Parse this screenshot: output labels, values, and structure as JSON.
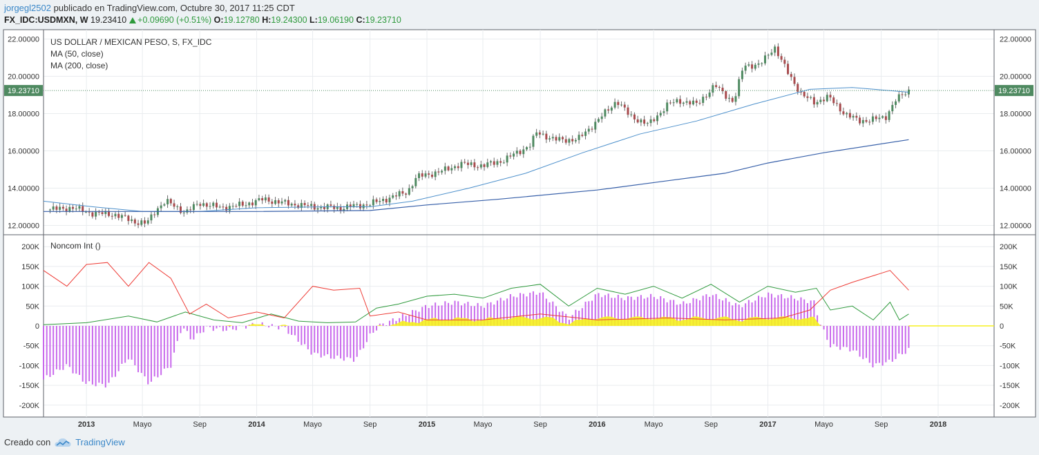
{
  "header": {
    "user": "jorgegl2502",
    "published": " publicado en TradingView.com, Octubre 30, 2017 11:25 CDT",
    "symbol": "FX_IDC:USDMXN, W",
    "last": "19.23410",
    "change": "+0.09690 (+0.51%)",
    "o_label": "O:",
    "o": "19.12780",
    "h_label": "H:",
    "h": "19.24300",
    "l_label": "L:",
    "l": "19.06190",
    "c_label": "C:",
    "c": "19.23710"
  },
  "legend": {
    "title": "US DOLLAR / MEXICAN PESO, S, FX_IDC",
    "ma50": "MA (50, close)",
    "ma200": "MA (200, close)",
    "indicator": "Noncom Int ()"
  },
  "footer": {
    "created": "Creado con",
    "brand": "TradingView"
  },
  "colors": {
    "up": "#4f8a61",
    "down": "#a84a4d",
    "ma50": "#4b8fcb",
    "ma200": "#355ea8",
    "longs": "#2e9a3c",
    "shorts": "#ee3b35",
    "net_bar": "#c868ec",
    "net_area": "#f5f11e",
    "price_tag": "#4f8a61"
  },
  "chart_data": [
    {
      "type": "candlestick",
      "title": "US DOLLAR / MEXICAN PESO, S, FX_IDC",
      "timeframe": "W",
      "ylim": [
        11.5,
        22.5
      ],
      "y_ticks": [
        "12.00000",
        "14.00000",
        "16.00000",
        "18.00000",
        "20.00000",
        "22.00000"
      ],
      "last_price": "19.23710",
      "x_ticks": [
        "2013",
        "Mayo",
        "Sep",
        "2014",
        "Mayo",
        "Sep",
        "2015",
        "Mayo",
        "Sep",
        "2016",
        "Mayo",
        "Sep",
        "2017",
        "Mayo",
        "Sep",
        "2018"
      ],
      "x_date_ticks": [
        "2013-01-01",
        "2013-05-01",
        "2013-09-01",
        "2014-01-01",
        "2014-05-01",
        "2014-09-01",
        "2015-01-01",
        "2015-05-01",
        "2015-09-01",
        "2016-01-01",
        "2016-05-01",
        "2016-09-01",
        "2017-01-01",
        "2017-05-01",
        "2017-09-01",
        "2018-01-01"
      ],
      "close_anchors": [
        [
          "2012-10-15",
          12.85
        ],
        [
          "2012-12-01",
          12.95
        ],
        [
          "2013-01-15",
          12.65
        ],
        [
          "2013-03-01",
          12.6
        ],
        [
          "2013-04-15",
          12.2
        ],
        [
          "2013-05-10",
          12.1
        ],
        [
          "2013-06-01",
          12.9
        ],
        [
          "2013-06-20",
          13.3
        ],
        [
          "2013-08-01",
          12.7
        ],
        [
          "2013-09-01",
          13.2
        ],
        [
          "2013-10-15",
          12.95
        ],
        [
          "2013-12-01",
          13.1
        ],
        [
          "2014-01-15",
          13.4
        ],
        [
          "2014-03-01",
          13.2
        ],
        [
          "2014-05-01",
          13.0
        ],
        [
          "2014-07-01",
          12.95
        ],
        [
          "2014-09-01",
          13.15
        ],
        [
          "2014-10-15",
          13.5
        ],
        [
          "2014-11-20",
          13.8
        ],
        [
          "2014-12-10",
          14.6
        ],
        [
          "2015-02-01",
          14.9
        ],
        [
          "2015-03-15",
          15.3
        ],
        [
          "2015-05-01",
          15.2
        ],
        [
          "2015-06-15",
          15.5
        ],
        [
          "2015-08-10",
          16.3
        ],
        [
          "2015-08-25",
          17.0
        ],
        [
          "2015-10-01",
          16.6
        ],
        [
          "2015-11-20",
          16.6
        ],
        [
          "2016-01-05",
          17.7
        ],
        [
          "2016-02-12",
          18.7
        ],
        [
          "2016-03-10",
          17.9
        ],
        [
          "2016-04-20",
          17.4
        ],
        [
          "2016-06-01",
          18.5
        ],
        [
          "2016-06-25",
          18.7
        ],
        [
          "2016-08-01",
          18.5
        ],
        [
          "2016-09-10",
          19.5
        ],
        [
          "2016-10-20",
          18.6
        ],
        [
          "2016-11-10",
          20.6
        ],
        [
          "2016-12-15",
          20.6
        ],
        [
          "2017-01-15",
          21.6
        ],
        [
          "2017-02-10",
          20.3
        ],
        [
          "2017-03-15",
          19.0
        ],
        [
          "2017-04-10",
          18.6
        ],
        [
          "2017-05-10",
          18.9
        ],
        [
          "2017-06-15",
          18.0
        ],
        [
          "2017-07-15",
          17.6
        ],
        [
          "2017-08-20",
          17.7
        ],
        [
          "2017-09-10",
          17.8
        ],
        [
          "2017-10-01",
          18.7
        ],
        [
          "2017-10-30",
          19.2371
        ]
      ],
      "ma50_anchors": [
        [
          "2012-10-01",
          13.3
        ],
        [
          "2013-01-15",
          13.0
        ],
        [
          "2013-05-01",
          12.75
        ],
        [
          "2013-09-01",
          12.75
        ],
        [
          "2014-01-01",
          12.95
        ],
        [
          "2014-06-01",
          13.0
        ],
        [
          "2014-09-01",
          13.0
        ],
        [
          "2014-12-01",
          13.3
        ],
        [
          "2015-04-01",
          14.0
        ],
        [
          "2015-08-01",
          14.8
        ],
        [
          "2015-12-01",
          15.9
        ],
        [
          "2016-04-01",
          16.9
        ],
        [
          "2016-08-01",
          17.6
        ],
        [
          "2016-12-01",
          18.5
        ],
        [
          "2017-04-01",
          19.3
        ],
        [
          "2017-07-01",
          19.4
        ],
        [
          "2017-10-30",
          19.15
        ]
      ],
      "ma200_anchors": [
        [
          "2012-10-01",
          12.75
        ],
        [
          "2013-06-01",
          12.75
        ],
        [
          "2014-01-01",
          12.75
        ],
        [
          "2014-09-01",
          12.8
        ],
        [
          "2015-01-01",
          13.1
        ],
        [
          "2015-06-01",
          13.4
        ],
        [
          "2016-01-01",
          13.9
        ],
        [
          "2016-06-01",
          14.4
        ],
        [
          "2016-10-01",
          14.8
        ],
        [
          "2017-01-01",
          15.35
        ],
        [
          "2017-05-01",
          15.9
        ],
        [
          "2017-10-30",
          16.6
        ]
      ]
    },
    {
      "type": "bar+line",
      "title": "Noncom Int ()",
      "ylim": [
        -230000,
        230000
      ],
      "y_ticks": [
        "200K",
        "150K",
        "100K",
        "50K",
        "0",
        "-50K",
        "-100K",
        "-150K",
        "-200K"
      ],
      "series": [
        {
          "name": "Longs",
          "color": "#2e9a3c",
          "points": [
            [
              "2012-10-01",
              3000
            ],
            [
              "2013-01-01",
              8000
            ],
            [
              "2013-04-01",
              25000
            ],
            [
              "2013-06-01",
              10000
            ],
            [
              "2013-08-01",
              35000
            ],
            [
              "2013-10-01",
              15000
            ],
            [
              "2013-12-01",
              8000
            ],
            [
              "2014-02-01",
              30000
            ],
            [
              "2014-04-01",
              12000
            ],
            [
              "2014-06-01",
              8000
            ],
            [
              "2014-08-01",
              10000
            ],
            [
              "2014-09-15",
              45000
            ],
            [
              "2014-11-01",
              55000
            ],
            [
              "2015-01-01",
              75000
            ],
            [
              "2015-03-01",
              80000
            ],
            [
              "2015-05-01",
              70000
            ],
            [
              "2015-07-01",
              95000
            ],
            [
              "2015-09-01",
              105000
            ],
            [
              "2015-11-01",
              50000
            ],
            [
              "2016-01-01",
              95000
            ],
            [
              "2016-03-01",
              80000
            ],
            [
              "2016-05-01",
              100000
            ],
            [
              "2016-07-01",
              70000
            ],
            [
              "2016-09-01",
              105000
            ],
            [
              "2016-11-01",
              60000
            ],
            [
              "2017-01-01",
              100000
            ],
            [
              "2017-03-01",
              85000
            ],
            [
              "2017-04-15",
              95000
            ],
            [
              "2017-05-15",
              40000
            ],
            [
              "2017-07-01",
              50000
            ],
            [
              "2017-08-15",
              15000
            ],
            [
              "2017-09-20",
              60000
            ],
            [
              "2017-10-10",
              15000
            ],
            [
              "2017-10-30",
              30000
            ]
          ]
        },
        {
          "name": "Shorts",
          "color": "#ee3b35",
          "points": [
            [
              "2012-10-01",
              140000
            ],
            [
              "2012-11-20",
              100000
            ],
            [
              "2013-01-01",
              155000
            ],
            [
              "2013-02-15",
              160000
            ],
            [
              "2013-04-01",
              100000
            ],
            [
              "2013-05-15",
              160000
            ],
            [
              "2013-07-01",
              120000
            ],
            [
              "2013-08-10",
              30000
            ],
            [
              "2013-09-15",
              55000
            ],
            [
              "2013-11-01",
              20000
            ],
            [
              "2014-01-01",
              35000
            ],
            [
              "2014-03-01",
              20000
            ],
            [
              "2014-05-01",
              100000
            ],
            [
              "2014-06-15",
              90000
            ],
            [
              "2014-08-10",
              95000
            ],
            [
              "2014-09-01",
              25000
            ],
            [
              "2014-11-01",
              35000
            ],
            [
              "2015-01-01",
              15000
            ],
            [
              "2015-05-01",
              15000
            ],
            [
              "2015-09-01",
              30000
            ],
            [
              "2016-01-01",
              15000
            ],
            [
              "2016-06-01",
              20000
            ],
            [
              "2016-10-01",
              15000
            ],
            [
              "2017-02-01",
              20000
            ],
            [
              "2017-04-01",
              40000
            ],
            [
              "2017-05-15",
              90000
            ],
            [
              "2017-07-01",
              110000
            ],
            [
              "2017-09-20",
              140000
            ],
            [
              "2017-10-30",
              90000
            ]
          ]
        },
        {
          "name": "Net",
          "color": "#c868ec",
          "points": [
            [
              "2012-10-01",
              -135000
            ],
            [
              "2012-11-20",
              -100000
            ],
            [
              "2013-01-01",
              -145000
            ],
            [
              "2013-02-15",
              -150000
            ],
            [
              "2013-04-01",
              -80000
            ],
            [
              "2013-05-15",
              -145000
            ],
            [
              "2013-07-01",
              -100000
            ],
            [
              "2013-07-25",
              0
            ],
            [
              "2013-08-15",
              -35000
            ],
            [
              "2013-09-15",
              -5000
            ],
            [
              "2013-11-01",
              -10000
            ],
            [
              "2014-01-01",
              5000
            ],
            [
              "2014-03-01",
              -5000
            ],
            [
              "2014-05-01",
              -70000
            ],
            [
              "2014-06-15",
              -80000
            ],
            [
              "2014-08-01",
              -85000
            ],
            [
              "2014-09-01",
              -25000
            ],
            [
              "2014-09-20",
              0
            ],
            [
              "2014-11-01",
              20000
            ],
            [
              "2015-01-01",
              50000
            ],
            [
              "2015-03-01",
              60000
            ],
            [
              "2015-05-01",
              50000
            ],
            [
              "2015-07-01",
              75000
            ],
            [
              "2015-09-01",
              85000
            ],
            [
              "2015-11-01",
              20000
            ],
            [
              "2016-01-01",
              80000
            ],
            [
              "2016-03-01",
              70000
            ],
            [
              "2016-05-01",
              75000
            ],
            [
              "2016-07-01",
              55000
            ],
            [
              "2016-09-01",
              80000
            ],
            [
              "2016-11-01",
              50000
            ],
            [
              "2017-01-01",
              80000
            ],
            [
              "2017-03-01",
              70000
            ],
            [
              "2017-04-10",
              60000
            ],
            [
              "2017-04-25",
              0
            ],
            [
              "2017-05-15",
              -50000
            ],
            [
              "2017-07-01",
              -60000
            ],
            [
              "2017-08-15",
              -100000
            ],
            [
              "2017-09-20",
              -90000
            ],
            [
              "2017-10-30",
              -60000
            ]
          ]
        }
      ]
    }
  ]
}
